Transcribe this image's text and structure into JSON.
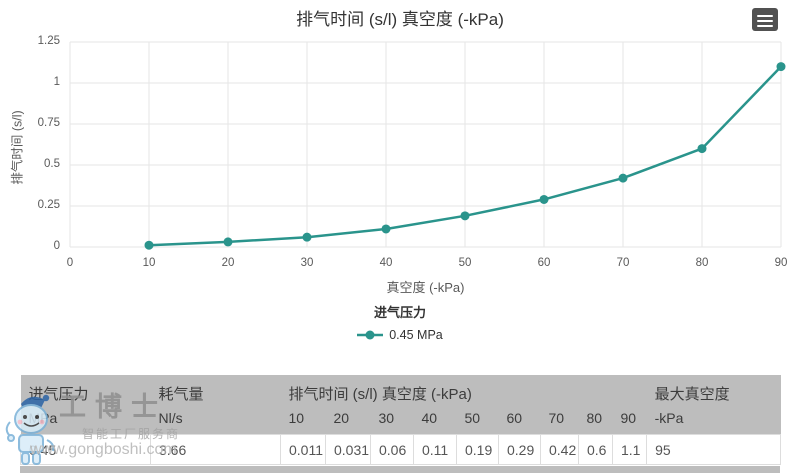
{
  "chart": {
    "menu_button": {
      "icon": "hamburger-menu"
    }
  },
  "chart_data": {
    "type": "line",
    "title": "排气时间 (s/l) 真空度 (-kPa)",
    "xlabel": "真空度 (-kPa)",
    "ylabel": "排气时间 (s/l)",
    "x": [
      10,
      20,
      30,
      40,
      50,
      60,
      70,
      80,
      90
    ],
    "series": [
      {
        "name": "0.45 MPa",
        "values": [
          0.011,
          0.031,
          0.06,
          0.11,
          0.19,
          0.29,
          0.42,
          0.6,
          1.1
        ]
      }
    ],
    "xlim": [
      0,
      90
    ],
    "ylim": [
      0,
      1.25
    ],
    "xticks": [
      0,
      10,
      20,
      30,
      40,
      50,
      60,
      70,
      80,
      90
    ],
    "yticks": [
      0,
      0.25,
      0.5,
      0.75,
      1,
      1.25
    ],
    "ytick_labels": [
      "0",
      "0.25",
      "0.5",
      "0.75",
      "1",
      "1.25"
    ],
    "grid": true,
    "legend_title": "进气压力",
    "legend_position": "bottom-center",
    "series_color": "#2a948c"
  },
  "table": {
    "header_row": [
      {
        "label": "进气压力",
        "colspan": 1
      },
      {
        "label": "耗气量",
        "colspan": 1
      },
      {
        "label": "排气时间 (s/l) 真空度 (-kPa)",
        "colspan": 9
      },
      {
        "label": "最大真空度",
        "colspan": 1
      }
    ],
    "units_row": [
      "MPa",
      "Nl/s",
      "10",
      "20",
      "30",
      "40",
      "50",
      "60",
      "70",
      "80",
      "90",
      "-kPa"
    ],
    "rows": [
      [
        "0.45",
        "3.66",
        "0.011",
        "0.031",
        "0.06",
        "0.11",
        "0.19",
        "0.29",
        "0.42",
        "0.6",
        "1.1",
        "95"
      ]
    ]
  },
  "watermark": {
    "brand": "工博士",
    "tagline": "智能工厂服务商",
    "url": "www.gongboshi.com"
  },
  "colors": {
    "series": "#2a948c",
    "grid": "#e6e6e6",
    "title_text": "#333333",
    "axis_text": "#595959",
    "table_header_bg": "#bdbdbd",
    "table_border": "#dddddd",
    "menu_button_bg": "#515151"
  }
}
